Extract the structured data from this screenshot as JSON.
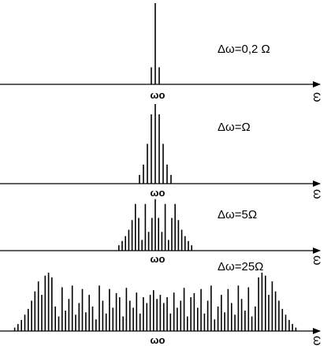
{
  "figure": {
    "panels": [
      {
        "delta_label": "Δω=0,2 Ω",
        "center_label": "ωo",
        "axis_label": "ω",
        "amplitudes": [
          0.21,
          1.0,
          0.21
        ]
      },
      {
        "delta_label": "Δω=Ω",
        "center_label": "ωo",
        "axis_label": "ω",
        "amplitudes": [
          0.11,
          0.24,
          0.5,
          0.87,
          1.0,
          0.87,
          0.5,
          0.24,
          0.11
        ]
      },
      {
        "delta_label": "Δω=5Ω",
        "center_label": "ωo",
        "axis_label": "ω",
        "amplitudes": [
          0.1,
          0.18,
          0.27,
          0.39,
          0.57,
          0.87,
          0.61,
          0.2,
          0.87,
          0.35,
          0.61,
          0.96,
          0.61,
          0.35,
          0.87,
          0.2,
          0.61,
          0.87,
          0.57,
          0.39,
          0.27,
          0.18,
          0.1
        ]
      },
      {
        "delta_label": "Δω=25Ω",
        "center_label": "ωo",
        "axis_label": "ω",
        "amplitudes": [
          0.06,
          0.12,
          0.19,
          0.28,
          0.38,
          0.52,
          0.68,
          0.85,
          0.62,
          0.95,
          1.0,
          0.92,
          0.42,
          0.25,
          0.75,
          0.35,
          0.55,
          0.78,
          0.28,
          0.48,
          0.72,
          0.32,
          0.62,
          0.42,
          0.2,
          0.78,
          0.52,
          0.3,
          0.72,
          0.4,
          0.65,
          0.58,
          0.25,
          0.74,
          0.52,
          0.4,
          0.66,
          0.3,
          0.58,
          0.48,
          0.62,
          0.7,
          0.55,
          0.62,
          0.48,
          0.58,
          0.3,
          0.66,
          0.4,
          0.52,
          0.74,
          0.25,
          0.58,
          0.65,
          0.4,
          0.72,
          0.3,
          0.52,
          0.78,
          0.2,
          0.42,
          0.62,
          0.32,
          0.72,
          0.48,
          0.28,
          0.78,
          0.55,
          0.35,
          0.75,
          0.25,
          0.42,
          0.92,
          1.0,
          0.95,
          0.62,
          0.85,
          0.68,
          0.52,
          0.38,
          0.28,
          0.19,
          0.12,
          0.06
        ]
      }
    ]
  }
}
